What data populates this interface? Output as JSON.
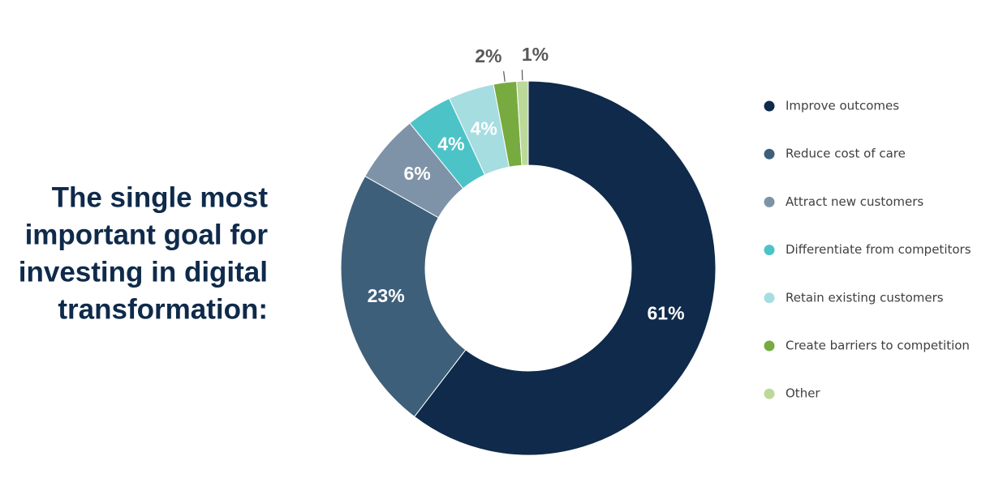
{
  "chart_data": {
    "type": "donut",
    "title": [
      "The single most",
      "important goal for",
      "investing in digital",
      "transformation:"
    ],
    "categories": [
      "Improve outcomes",
      "Reduce cost of care",
      "Attract new customers",
      "Differentiate from competitors",
      "Retain existing customers",
      "Create barriers to competition",
      "Other"
    ],
    "values": [
      61,
      23,
      6,
      4,
      4,
      2,
      1
    ],
    "value_labels": [
      "61%",
      "23%",
      "6%",
      "4%",
      "4%",
      "2%",
      "1%"
    ],
    "colors": [
      "#0f2a4a",
      "#3e5f7a",
      "#7f93a8",
      "#4cc3c7",
      "#a6dde1",
      "#77ab3f",
      "#bcd99a"
    ],
    "legend": "right"
  }
}
